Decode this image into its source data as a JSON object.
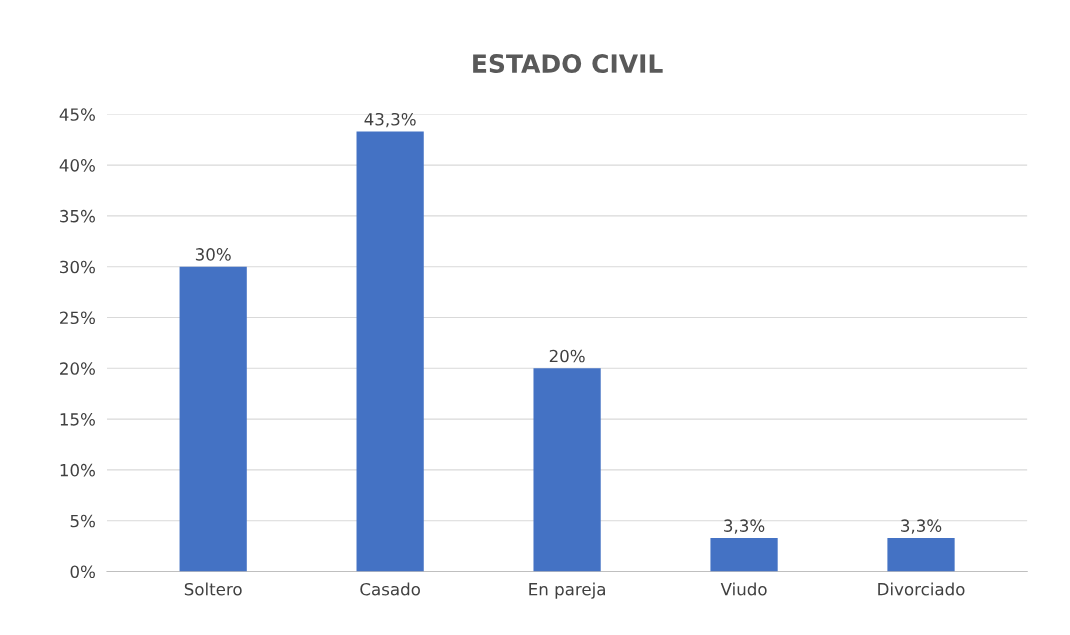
{
  "chart_data": {
    "type": "bar",
    "title": "ESTADO CIVIL",
    "categories": [
      "Soltero",
      "Casado",
      "En pareja",
      "Viudo",
      "Divorciado"
    ],
    "values": [
      30,
      43.3,
      20,
      3.3,
      3.3
    ],
    "value_labels": [
      "30%",
      "43,3%",
      "20%",
      "3,3%",
      "3,3%"
    ],
    "color": "#4472c4",
    "ylim": [
      0,
      45
    ],
    "yticks": [
      {
        "value": 0,
        "label": "0%"
      },
      {
        "value": 5,
        "label": "5%"
      },
      {
        "value": 10,
        "label": "10%"
      },
      {
        "value": 15,
        "label": "15%"
      },
      {
        "value": 20,
        "label": "20%"
      },
      {
        "value": 25,
        "label": "25%"
      },
      {
        "value": 30,
        "label": "30%"
      },
      {
        "value": 35,
        "label": "35%"
      },
      {
        "value": 40,
        "label": "40%"
      },
      {
        "value": 45,
        "label": "45%"
      }
    ],
    "grid": "y"
  }
}
